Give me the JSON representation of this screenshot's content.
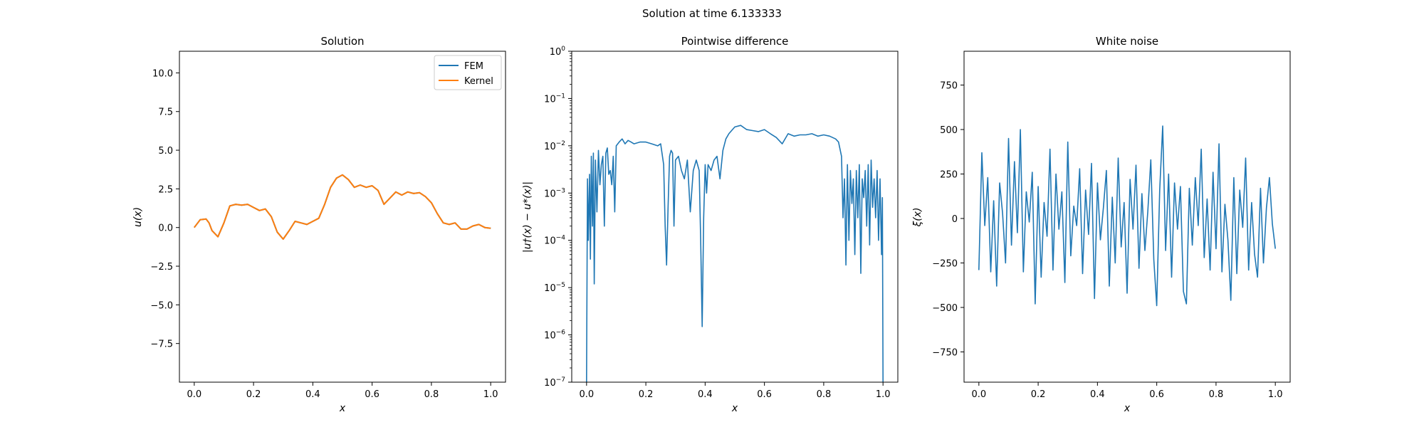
{
  "suptitle": "Solution at time 6.133333",
  "colors": {
    "fem": "#1f77b4",
    "kernel": "#ff7f0e",
    "series": "#1f77b4"
  },
  "chart_data": [
    {
      "type": "line",
      "title": "Solution",
      "xlabel": "x",
      "ylabel": "u(x)",
      "xlim": [
        -0.05,
        1.05
      ],
      "ylim": [
        -10,
        11.4
      ],
      "yscale": "linear",
      "xticks": [
        0.0,
        0.2,
        0.4,
        0.6,
        0.8,
        1.0
      ],
      "xtick_labels": [
        "0.0",
        "0.2",
        "0.4",
        "0.6",
        "0.8",
        "1.0"
      ],
      "yticks": [
        -7.5,
        -5.0,
        -2.5,
        0.0,
        2.5,
        5.0,
        7.5,
        10.0
      ],
      "ytick_labels": [
        "−7.5",
        "−5.0",
        "−2.5",
        "0.0",
        "2.5",
        "5.0",
        "7.5",
        "10.0"
      ],
      "legend": {
        "placement": "top-right",
        "entries": [
          "FEM",
          "Kernel"
        ]
      },
      "grid": false,
      "series": [
        {
          "name": "FEM",
          "color": "#1f77b4",
          "x": [
            0.0,
            0.02,
            0.04,
            0.05,
            0.06,
            0.08,
            0.1,
            0.12,
            0.14,
            0.16,
            0.18,
            0.2,
            0.22,
            0.24,
            0.26,
            0.28,
            0.3,
            0.32,
            0.34,
            0.36,
            0.38,
            0.4,
            0.42,
            0.44,
            0.46,
            0.48,
            0.5,
            0.52,
            0.54,
            0.56,
            0.58,
            0.6,
            0.62,
            0.64,
            0.66,
            0.68,
            0.7,
            0.72,
            0.74,
            0.76,
            0.78,
            0.8,
            0.82,
            0.84,
            0.86,
            0.88,
            0.9,
            0.92,
            0.94,
            0.96,
            0.98,
            1.0
          ],
          "y": [
            0.0,
            0.5,
            0.55,
            0.3,
            -0.2,
            -0.6,
            0.3,
            1.4,
            1.5,
            1.45,
            1.5,
            1.3,
            1.1,
            1.2,
            0.7,
            -0.3,
            -0.75,
            -0.2,
            0.4,
            0.3,
            0.2,
            0.4,
            0.6,
            1.5,
            2.6,
            3.2,
            3.4,
            3.1,
            2.6,
            2.75,
            2.6,
            2.7,
            2.4,
            1.5,
            1.9,
            2.3,
            2.1,
            2.3,
            2.2,
            2.25,
            2.0,
            1.6,
            0.9,
            0.3,
            0.2,
            0.3,
            -0.1,
            -0.1,
            0.1,
            0.2,
            0.0,
            -0.05
          ]
        },
        {
          "name": "Kernel",
          "color": "#ff7f0e",
          "x": [
            0.0,
            0.02,
            0.04,
            0.05,
            0.06,
            0.08,
            0.1,
            0.12,
            0.14,
            0.16,
            0.18,
            0.2,
            0.22,
            0.24,
            0.26,
            0.28,
            0.3,
            0.32,
            0.34,
            0.36,
            0.38,
            0.4,
            0.42,
            0.44,
            0.46,
            0.48,
            0.5,
            0.52,
            0.54,
            0.56,
            0.58,
            0.6,
            0.62,
            0.64,
            0.66,
            0.68,
            0.7,
            0.72,
            0.74,
            0.76,
            0.78,
            0.8,
            0.82,
            0.84,
            0.86,
            0.88,
            0.9,
            0.92,
            0.94,
            0.96,
            0.98,
            1.0
          ],
          "y": [
            0.0,
            0.5,
            0.55,
            0.3,
            -0.2,
            -0.6,
            0.3,
            1.4,
            1.5,
            1.45,
            1.5,
            1.3,
            1.1,
            1.2,
            0.7,
            -0.3,
            -0.75,
            -0.2,
            0.4,
            0.3,
            0.2,
            0.4,
            0.6,
            1.5,
            2.6,
            3.2,
            3.4,
            3.1,
            2.6,
            2.75,
            2.6,
            2.7,
            2.4,
            1.5,
            1.9,
            2.3,
            2.1,
            2.3,
            2.2,
            2.25,
            2.0,
            1.6,
            0.9,
            0.3,
            0.2,
            0.3,
            -0.1,
            -0.1,
            0.1,
            0.2,
            0.0,
            -0.05
          ]
        }
      ]
    },
    {
      "type": "line",
      "title": "Pointwise difference",
      "xlabel": "x",
      "ylabel": "|u†(x) − u*(x)|",
      "xlim": [
        -0.05,
        1.05
      ],
      "ylim": [
        1e-07,
        1
      ],
      "yscale": "log",
      "xticks": [
        0.0,
        0.2,
        0.4,
        0.6,
        0.8,
        1.0
      ],
      "xtick_labels": [
        "0.0",
        "0.2",
        "0.4",
        "0.6",
        "0.8",
        "1.0"
      ],
      "yticks": [
        1e-07,
        1e-06,
        1e-05,
        0.0001,
        0.001,
        0.01,
        0.1,
        1
      ],
      "ytick_labels": [
        [
          "10",
          "−7"
        ],
        [
          "10",
          "−6"
        ],
        [
          "10",
          "−5"
        ],
        [
          "10",
          "−4"
        ],
        [
          "10",
          "−3"
        ],
        [
          "10",
          "−2"
        ],
        [
          "10",
          "−1"
        ],
        [
          "10",
          "0"
        ]
      ],
      "grid": false,
      "series": [
        {
          "color": "#1f77b4",
          "x": [
            0.0,
            0.003,
            0.006,
            0.01,
            0.013,
            0.016,
            0.02,
            0.023,
            0.026,
            0.03,
            0.035,
            0.04,
            0.045,
            0.05,
            0.055,
            0.06,
            0.065,
            0.07,
            0.075,
            0.08,
            0.085,
            0.09,
            0.095,
            0.1,
            0.11,
            0.12,
            0.13,
            0.14,
            0.15,
            0.16,
            0.18,
            0.2,
            0.22,
            0.24,
            0.25,
            0.26,
            0.265,
            0.27,
            0.275,
            0.28,
            0.285,
            0.29,
            0.295,
            0.3,
            0.31,
            0.32,
            0.33,
            0.34,
            0.35,
            0.36,
            0.37,
            0.38,
            0.385,
            0.39,
            0.395,
            0.4,
            0.405,
            0.41,
            0.42,
            0.43,
            0.44,
            0.45,
            0.46,
            0.47,
            0.48,
            0.5,
            0.52,
            0.54,
            0.56,
            0.58,
            0.6,
            0.62,
            0.64,
            0.66,
            0.68,
            0.7,
            0.72,
            0.74,
            0.76,
            0.78,
            0.8,
            0.82,
            0.84,
            0.85,
            0.86,
            0.865,
            0.87,
            0.875,
            0.88,
            0.885,
            0.89,
            0.895,
            0.9,
            0.905,
            0.91,
            0.915,
            0.92,
            0.925,
            0.93,
            0.935,
            0.94,
            0.945,
            0.95,
            0.955,
            0.96,
            0.965,
            0.97,
            0.975,
            0.98,
            0.985,
            0.99,
            0.995,
            0.998,
            1.0
          ],
          "y": [
            1e-07,
            0.002,
            0.0001,
            0.0025,
            4e-05,
            0.006,
            0.0002,
            0.007,
            1.2e-05,
            0.005,
            0.0004,
            0.008,
            0.0015,
            0.004,
            0.006,
            0.0002,
            0.007,
            0.009,
            0.0025,
            0.003,
            0.0015,
            0.006,
            0.0004,
            0.01,
            0.012,
            0.014,
            0.011,
            0.013,
            0.012,
            0.011,
            0.012,
            0.012,
            0.011,
            0.01,
            0.011,
            0.004,
            0.0002,
            3e-05,
            0.0005,
            0.006,
            0.008,
            0.007,
            0.0002,
            0.005,
            0.006,
            0.003,
            0.002,
            0.005,
            0.0004,
            0.003,
            0.005,
            0.003,
            0.0001,
            1.5e-06,
            0.0003,
            0.004,
            0.001,
            0.004,
            0.003,
            0.005,
            0.006,
            0.002,
            0.008,
            0.014,
            0.018,
            0.025,
            0.027,
            0.022,
            0.021,
            0.02,
            0.022,
            0.018,
            0.015,
            0.011,
            0.018,
            0.016,
            0.017,
            0.017,
            0.018,
            0.016,
            0.017,
            0.016,
            0.014,
            0.012,
            0.006,
            0.0003,
            0.002,
            3e-05,
            0.004,
            0.0001,
            0.003,
            0.0006,
            0.002,
            5e-05,
            0.003,
            0.0003,
            0.004,
            2e-05,
            0.002,
            0.0008,
            0.003,
            0.0002,
            0.004,
            8e-05,
            0.005,
            0.0005,
            0.002,
            0.0003,
            0.003,
            0.0001,
            0.002,
            5e-05,
            0.0008,
            1e-07
          ]
        }
      ]
    },
    {
      "type": "line",
      "title": "White noise",
      "xlabel": "x",
      "ylabel": "ξ(x)",
      "xlim": [
        -0.05,
        1.05
      ],
      "ylim": [
        -920,
        940
      ],
      "yscale": "linear",
      "xticks": [
        0.0,
        0.2,
        0.4,
        0.6,
        0.8,
        1.0
      ],
      "xtick_labels": [
        "0.0",
        "0.2",
        "0.4",
        "0.6",
        "0.8",
        "1.0"
      ],
      "yticks": [
        -750,
        -500,
        -250,
        0,
        250,
        500,
        750
      ],
      "ytick_labels": [
        "−750",
        "−500",
        "−250",
        "0",
        "250",
        "500",
        "750"
      ],
      "grid": false,
      "series": [
        {
          "color": "#1f77b4",
          "x": [
            0.0,
            0.01,
            0.02,
            0.03,
            0.04,
            0.05,
            0.06,
            0.07,
            0.08,
            0.09,
            0.1,
            0.11,
            0.12,
            0.13,
            0.14,
            0.15,
            0.16,
            0.17,
            0.18,
            0.19,
            0.2,
            0.21,
            0.22,
            0.23,
            0.24,
            0.25,
            0.26,
            0.27,
            0.28,
            0.29,
            0.3,
            0.31,
            0.32,
            0.33,
            0.34,
            0.35,
            0.36,
            0.37,
            0.38,
            0.39,
            0.4,
            0.41,
            0.42,
            0.43,
            0.44,
            0.45,
            0.46,
            0.47,
            0.48,
            0.49,
            0.5,
            0.51,
            0.52,
            0.53,
            0.54,
            0.55,
            0.56,
            0.57,
            0.58,
            0.59,
            0.6,
            0.61,
            0.62,
            0.63,
            0.64,
            0.65,
            0.66,
            0.67,
            0.68,
            0.69,
            0.7,
            0.71,
            0.72,
            0.73,
            0.74,
            0.75,
            0.76,
            0.77,
            0.78,
            0.79,
            0.8,
            0.81,
            0.82,
            0.83,
            0.84,
            0.85,
            0.86,
            0.87,
            0.88,
            0.89,
            0.9,
            0.91,
            0.92,
            0.93,
            0.94,
            0.95,
            0.96,
            0.97,
            0.98,
            0.99,
            1.0
          ],
          "y": [
            -290,
            370,
            -40,
            230,
            -300,
            100,
            -380,
            200,
            30,
            -250,
            450,
            -150,
            320,
            -80,
            500,
            -300,
            150,
            -20,
            260,
            -480,
            180,
            -330,
            90,
            -100,
            390,
            -290,
            250,
            -60,
            150,
            -360,
            430,
            -210,
            70,
            -40,
            280,
            -310,
            160,
            -90,
            310,
            -450,
            200,
            -120,
            60,
            270,
            -380,
            120,
            -250,
            340,
            -160,
            90,
            -420,
            220,
            -60,
            300,
            -280,
            140,
            -180,
            40,
            330,
            -230,
            -490,
            160,
            520,
            -180,
            250,
            -330,
            200,
            -60,
            180,
            -410,
            -480,
            170,
            -150,
            230,
            -40,
            390,
            -220,
            110,
            -290,
            260,
            -170,
            420,
            -300,
            80,
            -120,
            -460,
            230,
            -310,
            160,
            -50,
            340,
            -290,
            90,
            -200,
            -330,
            170,
            -250,
            60,
            230,
            -30,
            -170
          ]
        }
      ]
    }
  ]
}
